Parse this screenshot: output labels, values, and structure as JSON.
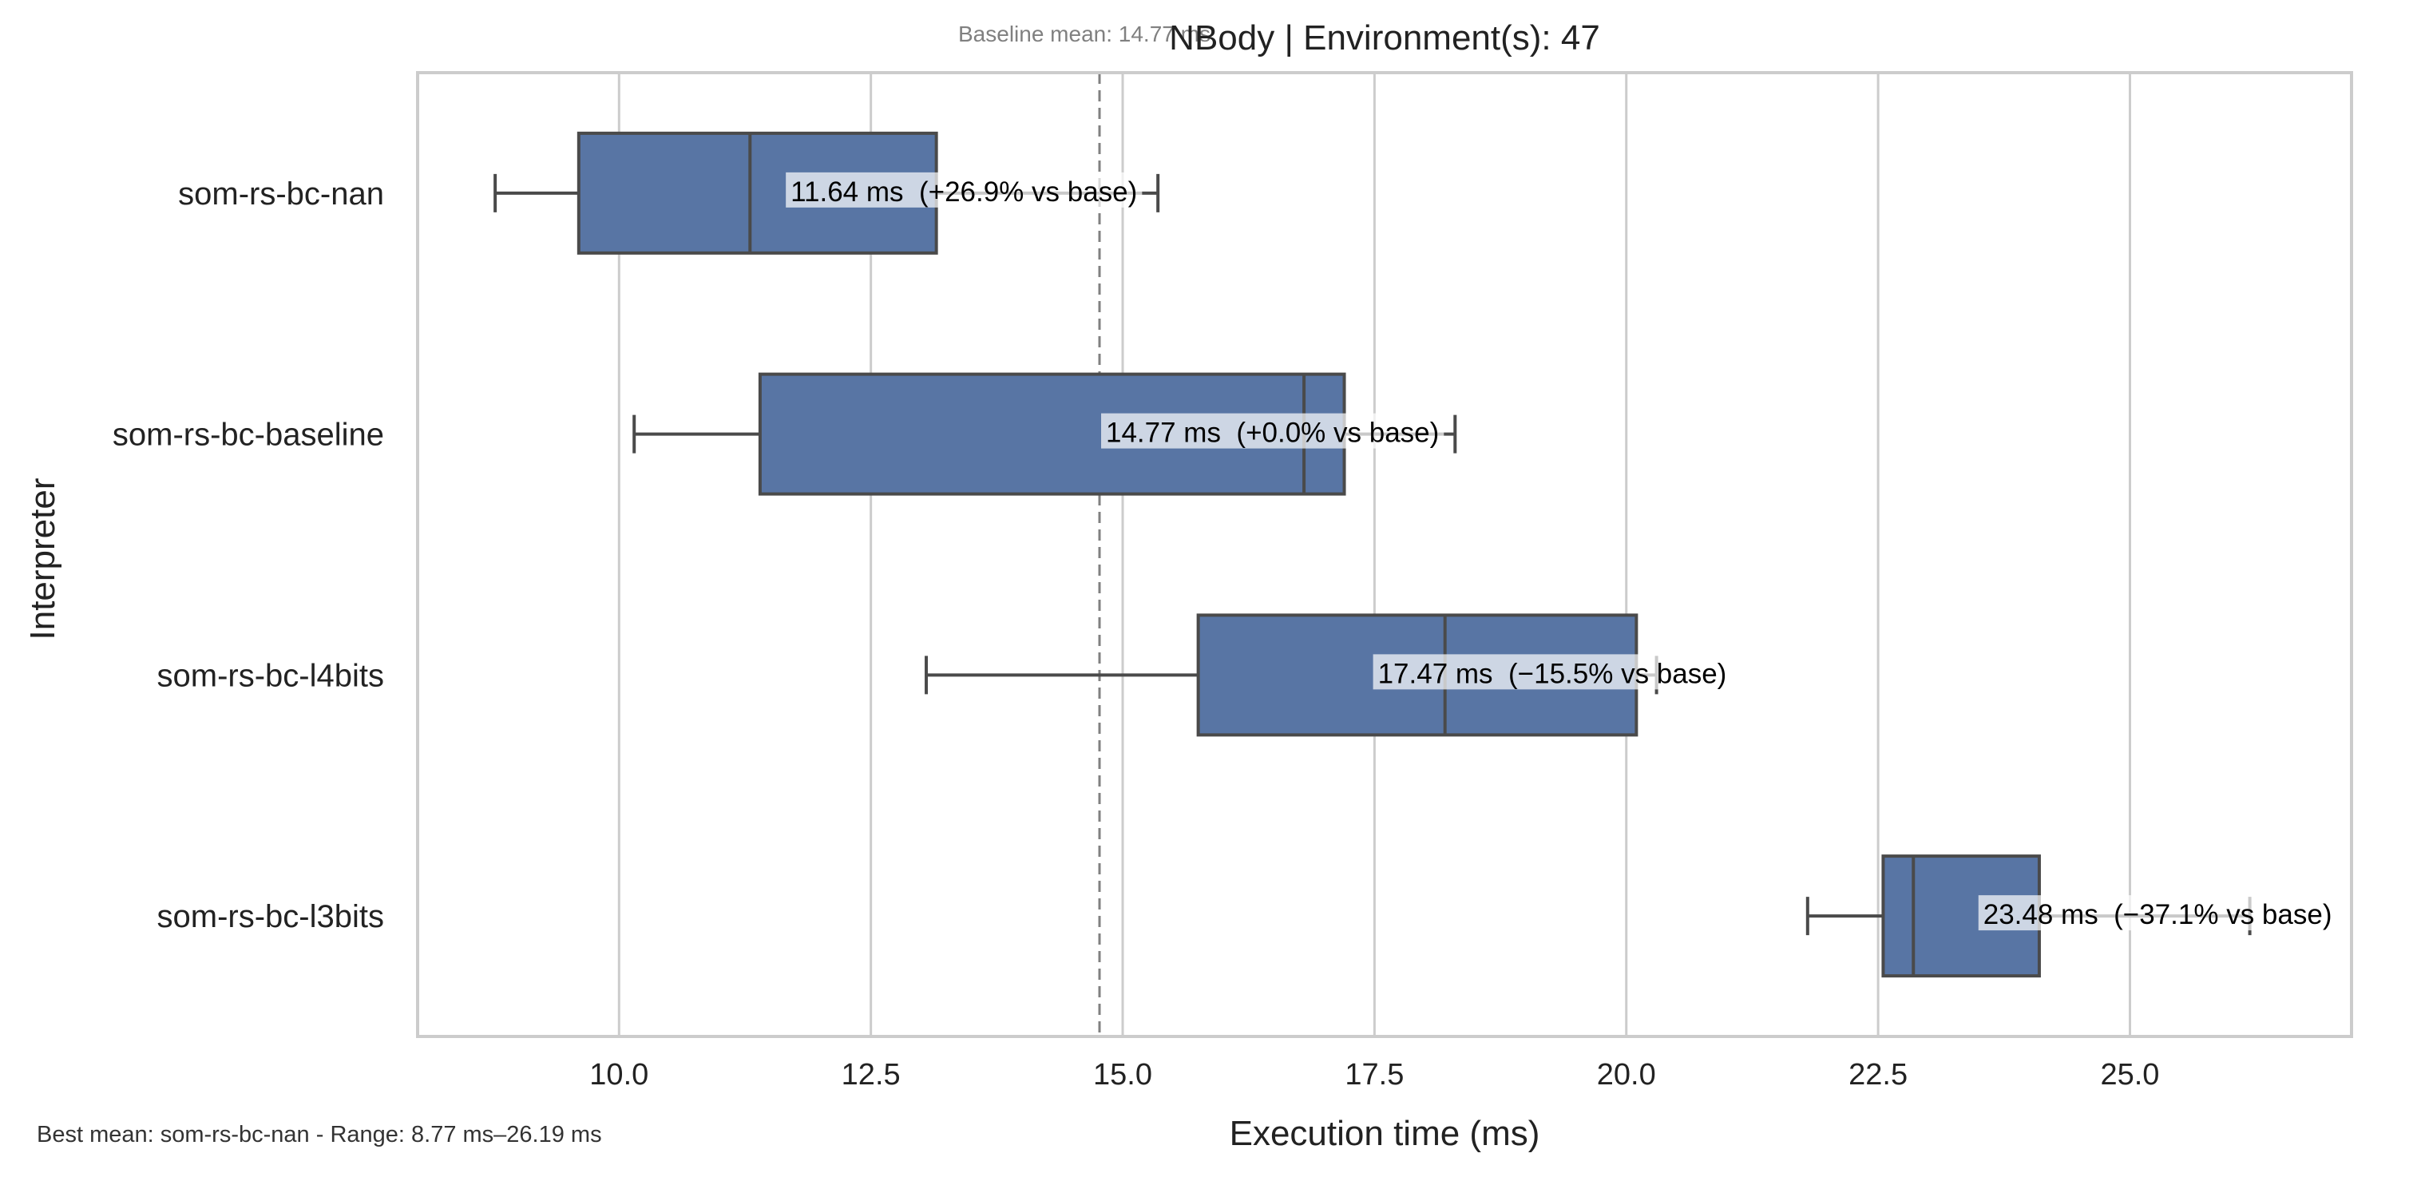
{
  "chart_data": {
    "type": "box",
    "orientation": "horizontal",
    "title": "NBody | Environment(s): 47",
    "subtitle": "Baseline mean: 14.77 ms",
    "xlabel": "Execution time (ms)",
    "ylabel": "Interpreter",
    "xlim": [
      8.0,
      27.2
    ],
    "xticks": [
      10.0,
      12.5,
      15.0,
      17.5,
      20.0,
      22.5,
      25.0
    ],
    "xtick_labels": [
      "10.0",
      "12.5",
      "15.0",
      "17.5",
      "20.0",
      "22.5",
      "25.0"
    ],
    "grid": "vertical",
    "baseline_mean": 14.77,
    "box_color": "#5875a4",
    "categories": [
      "som-rs-bc-nan",
      "som-rs-bc-baseline",
      "som-rs-bc-l4bits",
      "som-rs-bc-l3bits"
    ],
    "boxes": [
      {
        "name": "som-rs-bc-nan",
        "whisker_low": 8.77,
        "q1": 9.6,
        "median": 11.3,
        "q3": 13.15,
        "whisker_high": 15.35,
        "mean": 11.64,
        "annotation": "11.64 ms  (+26.9% vs base)"
      },
      {
        "name": "som-rs-bc-baseline",
        "whisker_low": 10.15,
        "q1": 11.4,
        "median": 16.8,
        "q3": 17.2,
        "whisker_high": 18.3,
        "mean": 14.77,
        "annotation": "14.77 ms  (+0.0% vs base)"
      },
      {
        "name": "som-rs-bc-l4bits",
        "whisker_low": 13.05,
        "q1": 15.75,
        "median": 18.2,
        "q3": 20.1,
        "whisker_high": 20.3,
        "mean": 17.47,
        "annotation": "17.47 ms  (−15.5% vs base)"
      },
      {
        "name": "som-rs-bc-l3bits",
        "whisker_low": 21.8,
        "q1": 22.55,
        "median": 22.85,
        "q3": 24.1,
        "whisker_high": 26.19,
        "mean": 23.48,
        "annotation": "23.48 ms  (−37.1% vs base)"
      }
    ]
  },
  "footer": "Best mean: som-rs-bc-nan - Range: 8.77 ms–26.19 ms"
}
